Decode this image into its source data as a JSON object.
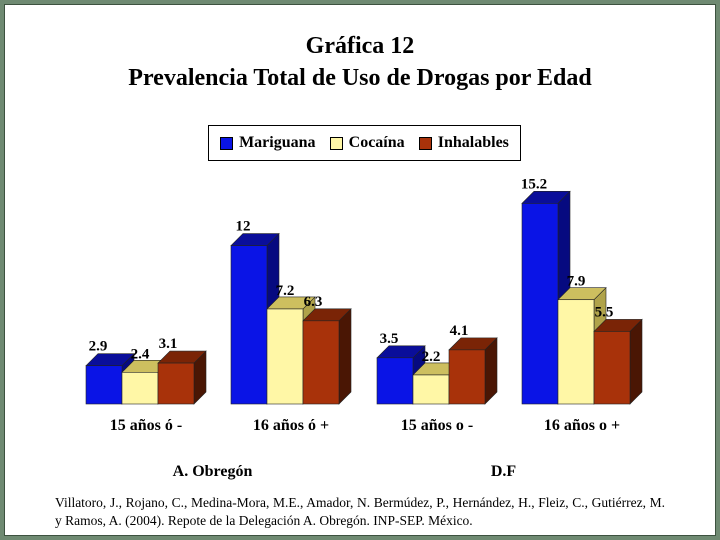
{
  "title": "Gráfica 12",
  "subtitle": "Prevalencia Total de Uso de Drogas por Edad",
  "footer": "Villatoro, J., Rojano, C., Medina-Mora, M.E., Amador, N. Bermúdez, P., Hernández, H., Fleiz, C., Gutiérrez, M. y Ramos, A. (2004). Repote de la Delegación A. Obregón. INP-SEP. México.",
  "chart_data": {
    "type": "bar",
    "categories": [
      "15 años ó -",
      "16 años ó +",
      "15 años o -",
      "16 años o +"
    ],
    "groups": [
      {
        "label": "A. Obregón",
        "categories": [
          0,
          1
        ]
      },
      {
        "label": "D.F",
        "categories": [
          2,
          3
        ]
      }
    ],
    "series": [
      {
        "name": "Mariguana",
        "values": [
          2.9,
          12,
          3.5,
          15.2
        ],
        "color": "#0a14e6",
        "top_color": "#0a0e9a",
        "side_color": "#060a80"
      },
      {
        "name": "Cocaína",
        "values": [
          2.4,
          7.2,
          2.2,
          7.9
        ],
        "color": "#fff7a6",
        "top_color": "#cdbf5f",
        "side_color": "#b0a34a"
      },
      {
        "name": "Inhalables",
        "values": [
          3.1,
          6.3,
          4.1,
          5.5
        ],
        "color": "#a8320a",
        "top_color": "#7a2406",
        "side_color": "#4a1604"
      }
    ],
    "value_labels": [
      "2.9",
      "12",
      "3.5",
      "15.2",
      "2.4",
      "7.2",
      "2.2",
      "7.9",
      "3.1",
      "6.3",
      "4.1",
      "5.5"
    ],
    "ylim": [
      0,
      16
    ],
    "legend_position": "top",
    "grid": false,
    "style": "3d-bar"
  }
}
